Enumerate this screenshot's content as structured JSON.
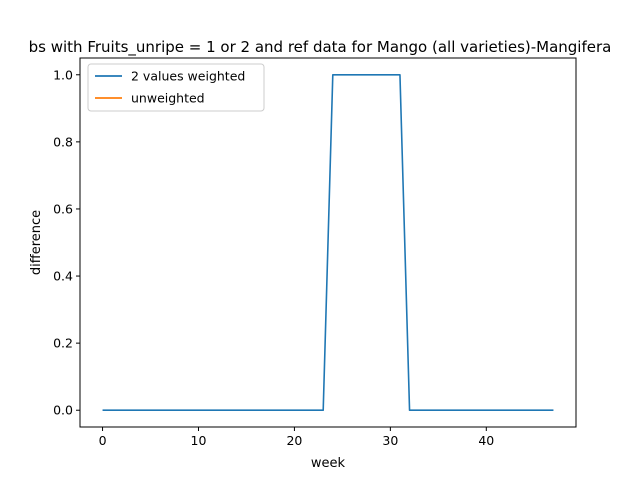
{
  "chart_data": {
    "type": "line",
    "title": "bs with Fruits_unripe = 1 or 2 and ref data for Mango (all varieties)-Mangifera",
    "xlabel": "week",
    "ylabel": "difference",
    "xlim": [
      -2.35,
      49.35
    ],
    "ylim": [
      -0.05,
      1.05
    ],
    "xticks": [
      0,
      10,
      20,
      30,
      40
    ],
    "yticks": [
      0.0,
      0.2,
      0.4,
      0.6,
      0.8,
      1.0
    ],
    "xtick_labels": [
      "0",
      "10",
      "20",
      "30",
      "40"
    ],
    "ytick_labels": [
      "0.0",
      "0.2",
      "0.4",
      "0.6",
      "0.8",
      "1.0"
    ],
    "legend_position": "top-left",
    "grid": false,
    "series": [
      {
        "name": "2 values weighted",
        "color": "#1f77b4",
        "x": [
          0,
          1,
          2,
          3,
          4,
          5,
          6,
          7,
          8,
          9,
          10,
          11,
          12,
          13,
          14,
          15,
          16,
          17,
          18,
          19,
          20,
          21,
          22,
          23,
          24,
          25,
          26,
          27,
          28,
          29,
          30,
          31,
          32,
          33,
          34,
          35,
          36,
          37,
          38,
          39,
          40,
          41,
          42,
          43,
          44,
          45,
          46,
          47
        ],
        "y": [
          0,
          0,
          0,
          0,
          0,
          0,
          0,
          0,
          0,
          0,
          0,
          0,
          0,
          0,
          0,
          0,
          0,
          0,
          0,
          0,
          0,
          0,
          0,
          0,
          1,
          1,
          1,
          1,
          1,
          1,
          1,
          1,
          0,
          0,
          0,
          0,
          0,
          0,
          0,
          0,
          0,
          0,
          0,
          0,
          0,
          0,
          0,
          0
        ]
      },
      {
        "name": "unweighted",
        "color": "#ff7f0e",
        "x": [],
        "y": []
      }
    ]
  }
}
